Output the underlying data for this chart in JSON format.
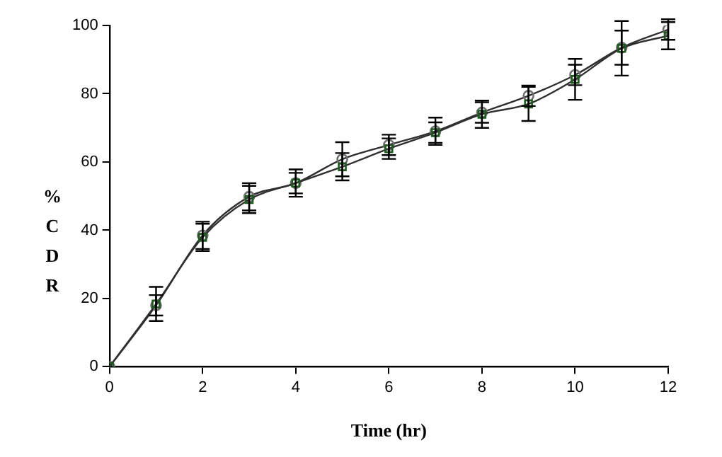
{
  "chart_data": {
    "type": "line",
    "xlabel": "Time (hr)",
    "ylabel": "% CDR",
    "x": [
      0,
      1,
      2,
      3,
      4,
      5,
      6,
      7,
      8,
      9,
      10,
      11,
      12
    ],
    "series": [
      {
        "color": "#1e5a1e",
        "marker": "square",
        "values": [
          0,
          18.4,
          37.9,
          49,
          53.8,
          58.6,
          63.9,
          68.6,
          74,
          77,
          84.2,
          93.3,
          97
        ],
        "errors": [
          0,
          5,
          4,
          4,
          3,
          4,
          3,
          3,
          4,
          5,
          6,
          8,
          4
        ]
      },
      {
        "color": "#707070",
        "marker": "circle",
        "values": [
          0,
          18,
          38.5,
          49.8,
          53.8,
          60.8,
          65,
          69,
          74.5,
          79.4,
          85.5,
          93.5,
          98.8
        ],
        "errors": [
          0,
          3,
          4,
          4,
          4,
          5,
          3,
          4,
          3,
          3,
          3,
          5,
          3
        ]
      }
    ],
    "xlim": [
      0,
      12
    ],
    "xticks": [
      0,
      2,
      4,
      6,
      8,
      10,
      12
    ],
    "ylim": [
      0,
      100
    ],
    "yticks": [
      0,
      20,
      40,
      60,
      80,
      100
    ],
    "grid": false,
    "legend": false,
    "line_style": "solid"
  }
}
